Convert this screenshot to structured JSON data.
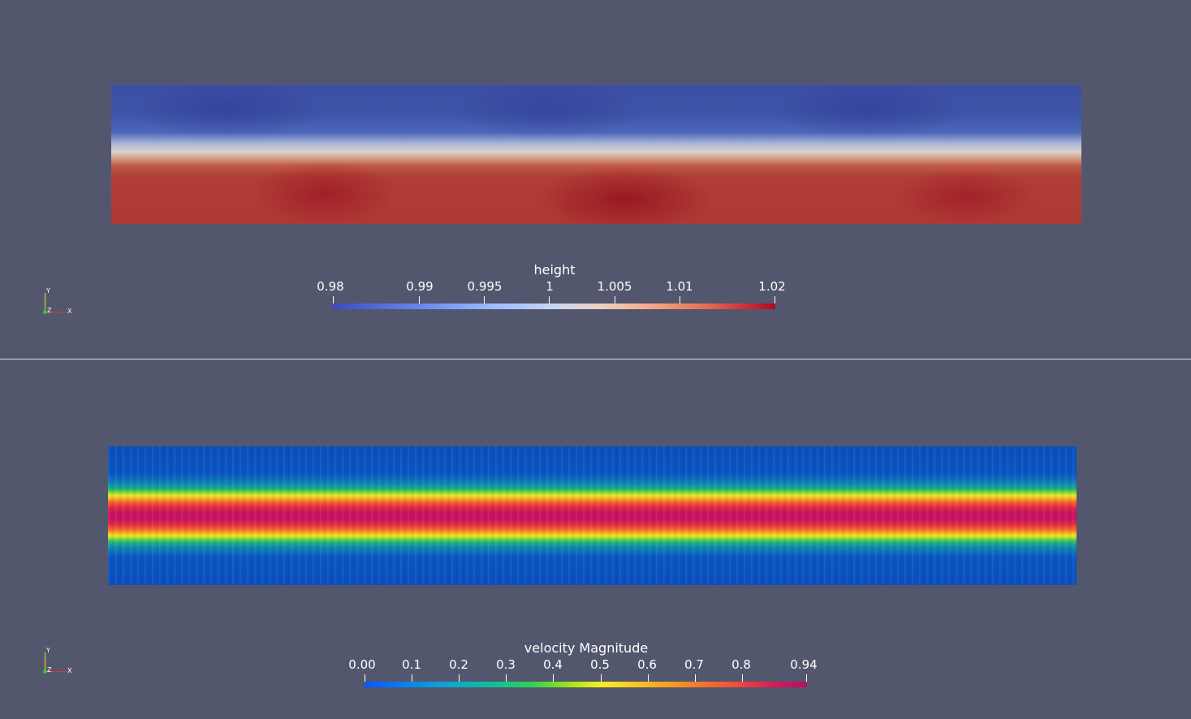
{
  "top_view": {
    "colorbar": {
      "title": "height",
      "ticks": [
        "0.98",
        "0.99",
        "0.995",
        "1",
        "1.005",
        "1.01",
        "1.02"
      ],
      "colormap": "coolwarm",
      "colors": [
        "#3b4cc0",
        "#dddddd",
        "#b40426"
      ]
    },
    "axes": {
      "y": "Y",
      "z": "Z",
      "x": "X"
    }
  },
  "bottom_view": {
    "colorbar": {
      "title": "velocity Magnitude",
      "ticks": [
        "0.00",
        "0.1",
        "0.2",
        "0.3",
        "0.4",
        "0.5",
        "0.6",
        "0.7",
        "0.8",
        "0.94"
      ],
      "colormap": "turbo",
      "colors": [
        "#0a58ff",
        "#2fd250",
        "#f2f21e",
        "#ef4d3a",
        "#b0126a"
      ]
    },
    "axes": {
      "y": "Y",
      "z": "Z",
      "x": "X"
    }
  },
  "theme": {
    "background": "#52576e",
    "divider": "#d9dbe3"
  }
}
